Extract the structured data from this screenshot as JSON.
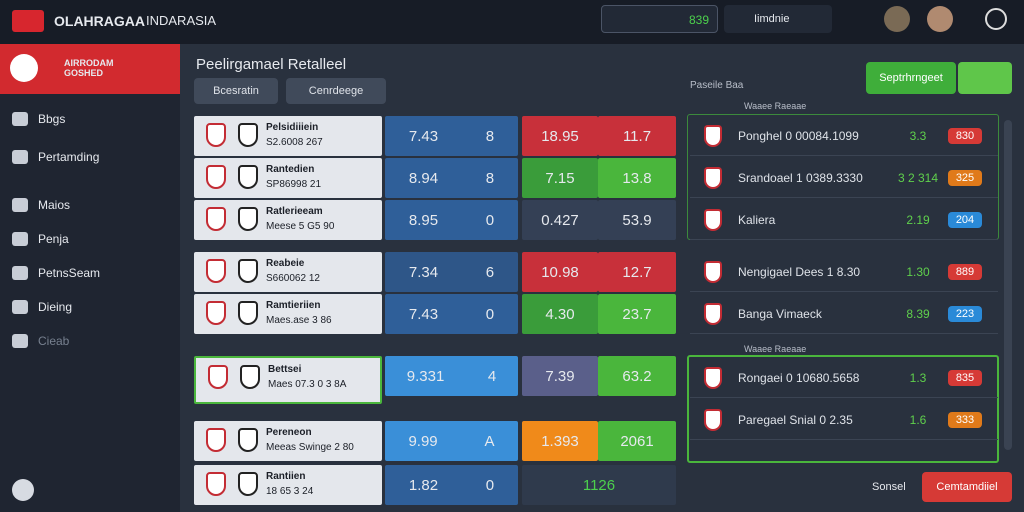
{
  "header": {
    "brand": "OLAHRAGAA",
    "region": "INDARASIA",
    "search": "839",
    "account": "Iimdnie"
  },
  "sidebar": {
    "promo": "AIRRODAM GOSHED",
    "items": [
      "Bbgs",
      "Pertamding",
      "Maios",
      "Penja",
      "PetnsSeam",
      "Dieing",
      "Cieab"
    ]
  },
  "main": {
    "title": "Peelirgamael Retalleel",
    "filters": [
      "Bcesratin",
      "Cenrdeege"
    ],
    "matches": [
      {
        "name": "Pelsidiiiein",
        "info": "S2.6008 267",
        "odds": [
          "7.43",
          "8",
          "18.95",
          "11.7"
        ]
      },
      {
        "name": "Rantedien",
        "info": "SP86998 21",
        "odds": [
          "8.94",
          "8",
          "7.15",
          "13.8"
        ]
      },
      {
        "name": "Ratlerieeam",
        "info": "Meese 5 G5 90",
        "odds": [
          "8.95",
          "0",
          "0.427",
          "53.9"
        ]
      },
      {
        "name": "Reabeie",
        "info": "S660062 12",
        "odds": [
          "7.34",
          "6",
          "10.98",
          "12.7"
        ]
      },
      {
        "name": "Ramtieriien",
        "info": "Maes.ase 3 86",
        "odds": [
          "7.43",
          "0",
          "4.30",
          "23.7"
        ]
      },
      {
        "name": "Bettsei",
        "info": "Maes 07.3 0 3 8A",
        "odds": [
          "9.331",
          "4",
          "7.39",
          "63.2"
        ]
      },
      {
        "name": "Pereneon",
        "info": "Meeas Swinge 2 80",
        "odds": [
          "9.99",
          "A",
          "1.393",
          "2061"
        ]
      },
      {
        "name": "Rantiien",
        "info": "18 65 3 24",
        "odds": [
          "1.82",
          "0",
          "1126"
        ]
      }
    ]
  },
  "panel": {
    "heading": "Paseile Baa",
    "button": "Septrhrngeet",
    "group": "Waaee Raeaae",
    "rows": [
      {
        "name": "Ponghel 0 00084.1099",
        "odd": "3.3",
        "badge": "830"
      },
      {
        "name": "Srandoael 1 0389.3330",
        "odd": "3 2 314",
        "badge": "325"
      },
      {
        "name": "Kaliera",
        "odd": "2.19",
        "badge": "204"
      },
      {
        "name": "Nengigael Dees 1 8.30",
        "odd": "1.30",
        "badge": "889"
      },
      {
        "name": "Banga Vimaeck",
        "odd": "8.39",
        "badge": "223"
      },
      {
        "name": "Rongaei 0 10680.5658",
        "odd": "1.3",
        "badge": "835"
      },
      {
        "name": "Paregael Snial 0 2.35",
        "odd": "1.6",
        "badge": "333"
      }
    ]
  },
  "footer": {
    "secondary": "Sonsel",
    "primary": "Cemtamdiiel"
  }
}
